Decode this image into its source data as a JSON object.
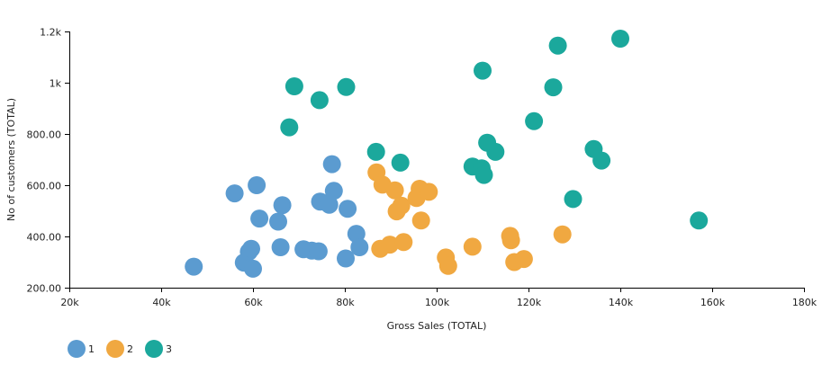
{
  "chart_data": {
    "type": "scatter",
    "title": "",
    "xlabel": "Gross Sales (TOTAL)",
    "ylabel": "No of customers (TOTAL)",
    "xlim": [
      20000,
      180000
    ],
    "ylim": [
      200,
      1200
    ],
    "x_ticks": [
      {
        "value": 20000,
        "label": "20k"
      },
      {
        "value": 40000,
        "label": "40k"
      },
      {
        "value": 60000,
        "label": "60k"
      },
      {
        "value": 80000,
        "label": "80k"
      },
      {
        "value": 100000,
        "label": "100k"
      },
      {
        "value": 120000,
        "label": "120k"
      },
      {
        "value": 140000,
        "label": "140k"
      },
      {
        "value": 160000,
        "label": "160k"
      },
      {
        "value": 180000,
        "label": "180k"
      }
    ],
    "y_ticks": [
      {
        "value": 200,
        "label": "200.00"
      },
      {
        "value": 400,
        "label": "400.00"
      },
      {
        "value": 600,
        "label": "600.00"
      },
      {
        "value": 800,
        "label": "800.00"
      },
      {
        "value": 1000,
        "label": "1k"
      },
      {
        "value": 1200,
        "label": "1.2k"
      }
    ],
    "grid": false,
    "legend_position": "bottom-left",
    "series": [
      {
        "name": "1",
        "color": "#5b9bd0",
        "points": [
          [
            47100,
            282
          ],
          [
            56000,
            568
          ],
          [
            58000,
            298
          ],
          [
            59100,
            340
          ],
          [
            59600,
            352
          ],
          [
            60000,
            274
          ],
          [
            60800,
            600
          ],
          [
            61400,
            470
          ],
          [
            65500,
            458
          ],
          [
            66000,
            358
          ],
          [
            66400,
            522
          ],
          [
            71000,
            350
          ],
          [
            72800,
            345
          ],
          [
            74300,
            342
          ],
          [
            74600,
            536
          ],
          [
            76600,
            524
          ],
          [
            77200,
            682
          ],
          [
            77600,
            578
          ],
          [
            80200,
            314
          ],
          [
            80600,
            508
          ],
          [
            82500,
            410
          ],
          [
            83200,
            358
          ]
        ]
      },
      {
        "name": "2",
        "color": "#f0a841",
        "points": [
          [
            86900,
            650
          ],
          [
            87700,
            352
          ],
          [
            88200,
            602
          ],
          [
            89800,
            368
          ],
          [
            90900,
            580
          ],
          [
            91300,
            498
          ],
          [
            92300,
            520
          ],
          [
            92800,
            378
          ],
          [
            95600,
            550
          ],
          [
            96300,
            586
          ],
          [
            96600,
            462
          ],
          [
            98300,
            574
          ],
          [
            102000,
            318
          ],
          [
            102500,
            285
          ],
          [
            107800,
            360
          ],
          [
            116000,
            402
          ],
          [
            116200,
            385
          ],
          [
            116900,
            300
          ],
          [
            119000,
            312
          ],
          [
            127400,
            408
          ]
        ]
      },
      {
        "name": "3",
        "color": "#1ba89c",
        "points": [
          [
            67900,
            826
          ],
          [
            69000,
            986
          ],
          [
            74500,
            932
          ],
          [
            80300,
            983
          ],
          [
            86800,
            730
          ],
          [
            92100,
            688
          ],
          [
            107800,
            673
          ],
          [
            109800,
            666
          ],
          [
            110000,
            1047
          ],
          [
            110300,
            640
          ],
          [
            111000,
            766
          ],
          [
            112800,
            730
          ],
          [
            121200,
            850
          ],
          [
            125400,
            982
          ],
          [
            126400,
            1145
          ],
          [
            129700,
            546
          ],
          [
            134200,
            741
          ],
          [
            135900,
            696
          ],
          [
            140000,
            1172
          ],
          [
            157100,
            462
          ]
        ]
      }
    ]
  }
}
